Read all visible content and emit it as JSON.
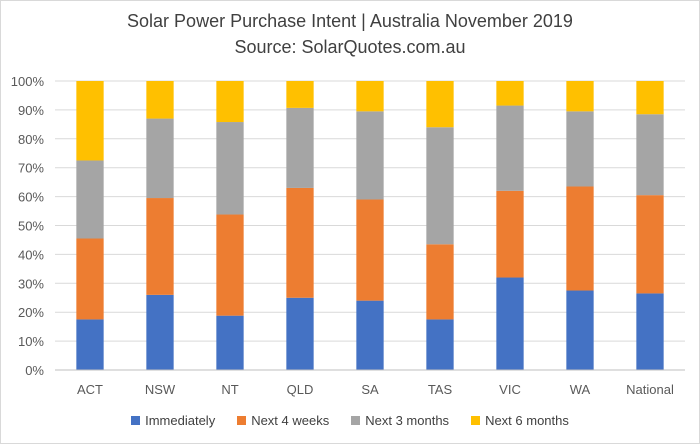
{
  "chart_data": {
    "type": "bar",
    "stacked": "percent",
    "title": "Solar Power Purchase Intent | Australia November 2019",
    "subtitle": "Source: SolarQuotes.com.au",
    "categories": [
      "ACT",
      "NSW",
      "NT",
      "QLD",
      "SA",
      "TAS",
      "VIC",
      "WA",
      "National"
    ],
    "series": [
      {
        "name": "Immediately",
        "color": "#4472C4",
        "values": [
          17.5,
          26,
          18.8,
          25,
          24,
          17.5,
          32,
          27.5,
          26.5
        ]
      },
      {
        "name": "Next 4 weeks",
        "color": "#ED7D31",
        "values": [
          28,
          33.5,
          35,
          38,
          35,
          26,
          30,
          36,
          34
        ]
      },
      {
        "name": "Next 3 months",
        "color": "#A5A5A5",
        "values": [
          27,
          27.5,
          32,
          27.7,
          30.5,
          40.5,
          29.5,
          26,
          28
        ]
      },
      {
        "name": "Next 6 months",
        "color": "#FFC000",
        "values": [
          27.5,
          13,
          14.2,
          9.3,
          10.5,
          16,
          8.5,
          10.5,
          11.5
        ]
      }
    ],
    "y_ticks": [
      "0%",
      "10%",
      "20%",
      "30%",
      "40%",
      "50%",
      "60%",
      "70%",
      "80%",
      "90%",
      "100%"
    ],
    "ylim": [
      0,
      100
    ],
    "grid": true,
    "legend": "bottom"
  }
}
